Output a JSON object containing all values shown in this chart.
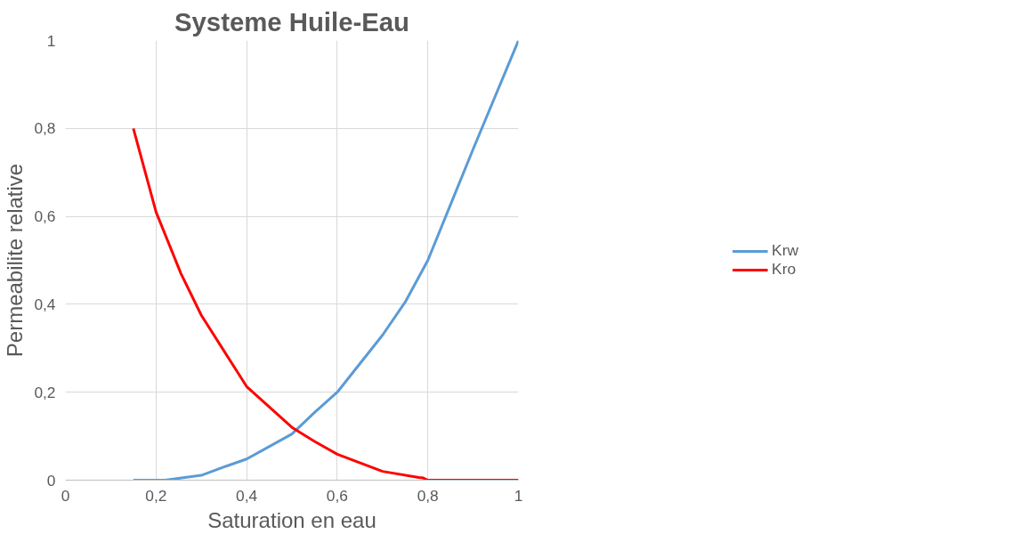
{
  "chart_data": {
    "type": "line",
    "title": "Systeme Huile-Eau",
    "xlabel": "Saturation en eau",
    "ylabel": "Permeabilite relative",
    "xlim": [
      0,
      1
    ],
    "xticks": [
      0,
      {
        "value": 0.2,
        "label": "0,2"
      },
      {
        "value": 0.4,
        "label": "0,4"
      },
      {
        "value": 0.6,
        "label": "0,6"
      },
      {
        "value": 0.8,
        "label": "0,8"
      },
      1
    ],
    "ylim": [
      0,
      1
    ],
    "yticks": [
      0,
      {
        "value": 0.2,
        "label": "0,2"
      },
      {
        "value": 0.4,
        "label": "0,4"
      },
      {
        "value": 0.6,
        "label": "0,6"
      },
      {
        "value": 0.8,
        "label": "0,8"
      },
      1
    ],
    "grid": true,
    "legend": "right",
    "marker": "none",
    "line_style": "solid",
    "series": [
      {
        "name": "Krw",
        "color": "#5b9bd5",
        "x": [
          0.15,
          0.22,
          0.3,
          0.35,
          0.4,
          0.5,
          0.55,
          0.6,
          0.7,
          0.75,
          0.8,
          0.9,
          1.0
        ],
        "values": [
          0,
          0,
          0.011,
          0.03,
          0.048,
          0.105,
          0.154,
          0.2,
          0.33,
          0.405,
          0.5,
          0.753,
          1
        ]
      },
      {
        "name": "Kro",
        "color": "#ff0000",
        "x": [
          0.15,
          0.2,
          0.255,
          0.3,
          0.4,
          0.5,
          0.55,
          0.6,
          0.7,
          0.78,
          0.79,
          0.8,
          1.0
        ],
        "values": [
          0.8,
          0.61,
          0.47,
          0.375,
          0.213,
          0.12,
          0.088,
          0.059,
          0.02,
          0.006,
          0.005,
          0,
          0
        ]
      }
    ]
  }
}
